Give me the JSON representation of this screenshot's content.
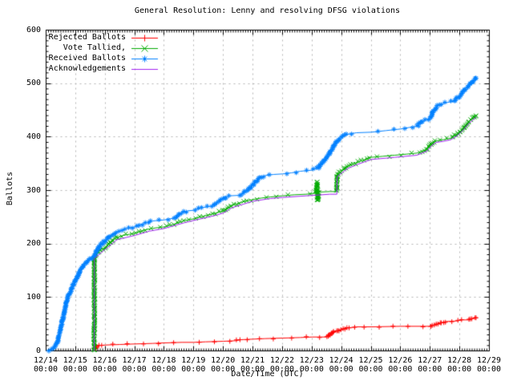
{
  "chart_data": {
    "type": "line",
    "title": "General Resolution: Lenny and resolving DFSG violations",
    "xlabel": "Date/Time (UTC)",
    "ylabel": "Ballots",
    "ylim": [
      0,
      600
    ],
    "y_ticks": [
      0,
      100,
      200,
      300,
      400,
      500,
      600
    ],
    "x_ticks": [
      "12/14",
      "12/15",
      "12/16",
      "12/17",
      "12/18",
      "12/19",
      "12/20",
      "12/21",
      "12/22",
      "12/23",
      "12/24",
      "12/25",
      "12/26",
      "12/27",
      "12/28",
      "12/29"
    ],
    "x_tick_sub": "00:00",
    "x_unit": "days since 12/14 00:00",
    "grid": true,
    "grid_color": "#b4b4b4",
    "axis_color": "#000000",
    "legend_position": "top-left-inside",
    "series": [
      {
        "name": "Rejected Ballots",
        "color": "#ff0000",
        "marker": "plus",
        "points": [
          [
            1.65,
            3
          ],
          [
            1.7,
            8
          ],
          [
            1.8,
            10
          ],
          [
            2,
            11
          ],
          [
            2.5,
            12
          ],
          [
            3,
            13
          ],
          [
            3.6,
            14
          ],
          [
            4,
            15
          ],
          [
            4.6,
            16
          ],
          [
            5,
            16
          ],
          [
            5.4,
            17
          ],
          [
            6,
            18
          ],
          [
            6.4,
            19
          ],
          [
            6.6,
            21
          ],
          [
            7,
            22
          ],
          [
            7.4,
            23
          ],
          [
            8,
            24
          ],
          [
            8.6,
            25
          ],
          [
            9,
            26
          ],
          [
            9.5,
            26
          ],
          [
            9.6,
            30
          ],
          [
            9.7,
            35
          ],
          [
            9.85,
            37
          ],
          [
            10,
            40
          ],
          [
            10.2,
            43
          ],
          [
            10.5,
            45
          ],
          [
            11,
            45
          ],
          [
            12,
            46
          ],
          [
            13,
            46
          ],
          [
            13.1,
            48
          ],
          [
            13.25,
            50
          ],
          [
            13.4,
            53
          ],
          [
            13.55,
            55
          ],
          [
            13.9,
            56
          ],
          [
            14.1,
            58
          ],
          [
            14.3,
            58
          ],
          [
            14.45,
            61
          ],
          [
            14.55,
            62
          ]
        ]
      },
      {
        "name": "Vote Tallied,",
        "color": "#00aa00",
        "marker": "cross",
        "points": [
          [
            1.63,
            0
          ],
          [
            1.635,
            175
          ],
          [
            1.7,
            180
          ],
          [
            1.85,
            190
          ],
          [
            2,
            193
          ],
          [
            2.2,
            205
          ],
          [
            2.4,
            212
          ],
          [
            2.6,
            216
          ],
          [
            3,
            220
          ],
          [
            3.4,
            227
          ],
          [
            3.7,
            230
          ],
          [
            4,
            232
          ],
          [
            4.4,
            238
          ],
          [
            4.7,
            244
          ],
          [
            5,
            247
          ],
          [
            5.4,
            253
          ],
          [
            5.7,
            257
          ],
          [
            6,
            262
          ],
          [
            6.3,
            272
          ],
          [
            6.6,
            278
          ],
          [
            7,
            283
          ],
          [
            7.3,
            286
          ],
          [
            7.6,
            288
          ],
          [
            8,
            290
          ],
          [
            8.4,
            292
          ],
          [
            8.8,
            293
          ],
          [
            9.1,
            295
          ],
          [
            9.15,
            297
          ],
          [
            9.17,
            315
          ],
          [
            9.19,
            280
          ],
          [
            9.22,
            297
          ],
          [
            9.6,
            298
          ],
          [
            9.84,
            298
          ],
          [
            9.85,
            330
          ],
          [
            10,
            336
          ],
          [
            10.2,
            345
          ],
          [
            10.5,
            352
          ],
          [
            10.8,
            358
          ],
          [
            11,
            362
          ],
          [
            11.4,
            364
          ],
          [
            11.8,
            366
          ],
          [
            12.2,
            368
          ],
          [
            12.55,
            370
          ],
          [
            12.7,
            373
          ],
          [
            12.9,
            378
          ],
          [
            13.05,
            388
          ],
          [
            13.2,
            393
          ],
          [
            13.45,
            395
          ],
          [
            13.7,
            398
          ],
          [
            13.9,
            405
          ],
          [
            14.1,
            415
          ],
          [
            14.3,
            428
          ],
          [
            14.45,
            435
          ],
          [
            14.55,
            440
          ]
        ]
      },
      {
        "name": "Received Ballots",
        "color": "#0080ff",
        "marker": "star",
        "points": [
          [
            0,
            0
          ],
          [
            0.15,
            2
          ],
          [
            0.3,
            8
          ],
          [
            0.4,
            20
          ],
          [
            0.5,
            42
          ],
          [
            0.6,
            70
          ],
          [
            0.7,
            95
          ],
          [
            0.85,
            115
          ],
          [
            1,
            132
          ],
          [
            1.15,
            150
          ],
          [
            1.3,
            162
          ],
          [
            1.5,
            172
          ],
          [
            1.63,
            177
          ],
          [
            1.8,
            196
          ],
          [
            2,
            206
          ],
          [
            2.15,
            215
          ],
          [
            2.4,
            222
          ],
          [
            2.7,
            228
          ],
          [
            3,
            232
          ],
          [
            3.3,
            238
          ],
          [
            3.6,
            243
          ],
          [
            4,
            245
          ],
          [
            4.3,
            248
          ],
          [
            4.6,
            258
          ],
          [
            4.8,
            262
          ],
          [
            5,
            263
          ],
          [
            5.3,
            268
          ],
          [
            5.6,
            271
          ],
          [
            6,
            285
          ],
          [
            6.2,
            290
          ],
          [
            6.55,
            291
          ],
          [
            6.8,
            300
          ],
          [
            7,
            310
          ],
          [
            7.2,
            322
          ],
          [
            7.4,
            328
          ],
          [
            7.7,
            330
          ],
          [
            8,
            331
          ],
          [
            8.3,
            333
          ],
          [
            8.6,
            336
          ],
          [
            9,
            338
          ],
          [
            9.2,
            342
          ],
          [
            9.4,
            355
          ],
          [
            9.6,
            370
          ],
          [
            9.8,
            390
          ],
          [
            10,
            400
          ],
          [
            10.2,
            405
          ],
          [
            10.5,
            408
          ],
          [
            11,
            409
          ],
          [
            11.5,
            412
          ],
          [
            12,
            415
          ],
          [
            12.3,
            418
          ],
          [
            12.55,
            420
          ],
          [
            12.7,
            428
          ],
          [
            12.85,
            432
          ],
          [
            13,
            435
          ],
          [
            13.1,
            448
          ],
          [
            13.25,
            458
          ],
          [
            13.4,
            462
          ],
          [
            13.6,
            465
          ],
          [
            13.8,
            467
          ],
          [
            14,
            478
          ],
          [
            14.15,
            488
          ],
          [
            14.3,
            495
          ],
          [
            14.45,
            505
          ],
          [
            14.55,
            510
          ]
        ]
      },
      {
        "name": "Acknowledgements",
        "color": "#a020f0",
        "marker": "none",
        "points": [
          [
            1.63,
            0
          ],
          [
            1.635,
            172
          ],
          [
            1.7,
            176
          ],
          [
            2,
            190
          ],
          [
            2.4,
            208
          ],
          [
            3,
            216
          ],
          [
            3.5,
            224
          ],
          [
            4,
            229
          ],
          [
            4.7,
            240
          ],
          [
            5,
            244
          ],
          [
            5.7,
            253
          ],
          [
            6,
            258
          ],
          [
            6.3,
            268
          ],
          [
            7,
            280
          ],
          [
            7.6,
            285
          ],
          [
            8,
            287
          ],
          [
            8.8,
            290
          ],
          [
            9.6,
            293
          ],
          [
            9.84,
            293
          ],
          [
            9.85,
            326
          ],
          [
            10.2,
            341
          ],
          [
            10.5,
            348
          ],
          [
            11,
            358
          ],
          [
            11.8,
            362
          ],
          [
            12.55,
            366
          ],
          [
            12.9,
            374
          ],
          [
            13.05,
            384
          ],
          [
            13.2,
            390
          ],
          [
            13.45,
            392
          ],
          [
            13.7,
            395
          ],
          [
            13.9,
            402
          ],
          [
            14.1,
            412
          ],
          [
            14.3,
            425
          ],
          [
            14.55,
            437
          ]
        ]
      }
    ]
  }
}
